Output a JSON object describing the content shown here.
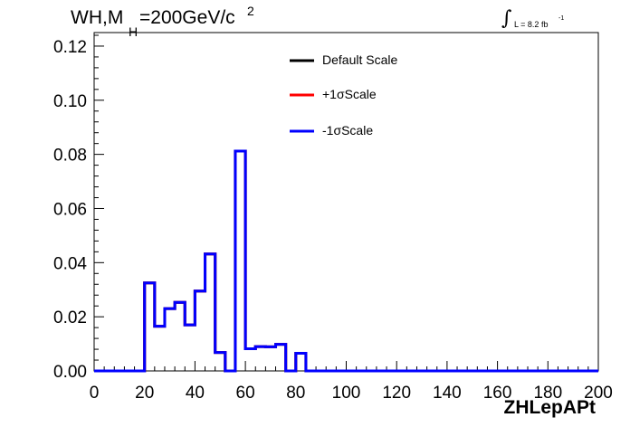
{
  "chart_data": {
    "type": "histogram",
    "title": {
      "prefix": "WH,M",
      "subscript": "H",
      "suffix": "=200GeV/c",
      "superscript": "2"
    },
    "luminosity": {
      "symbol": "∫",
      "text": "L = 8.2 fb",
      "superscript": "-1"
    },
    "xlabel": "ZHLepAPt",
    "xlim": [
      0,
      200
    ],
    "ylim": [
      0,
      0.125
    ],
    "xticks": [
      "0",
      "20",
      "40",
      "60",
      "80",
      "100",
      "120",
      "140",
      "160",
      "180",
      "200"
    ],
    "yticks": [
      "0.00",
      "0.02",
      "0.04",
      "0.06",
      "0.08",
      "0.10",
      "0.12"
    ],
    "bin_width": 4,
    "series": [
      {
        "name": "Default Scale",
        "color": "#000000",
        "values": [
          0,
          0,
          0,
          0,
          0,
          0.0325,
          0.0165,
          0.023,
          0.0253,
          0.017,
          0.0295,
          0.0432,
          0.0068,
          0,
          0.0812,
          0.0082,
          0.009,
          0.0089,
          0.0098,
          0,
          0.0065,
          0,
          0,
          0,
          0,
          0,
          0,
          0,
          0,
          0,
          0,
          0,
          0,
          0,
          0,
          0,
          0,
          0,
          0,
          0,
          0,
          0,
          0,
          0,
          0,
          0,
          0,
          0,
          0,
          0
        ]
      },
      {
        "name": "+1σScale",
        "color": "#ff0000",
        "values": [
          0,
          0,
          0,
          0,
          0,
          0.0325,
          0.0165,
          0.023,
          0.0253,
          0.017,
          0.0295,
          0.0432,
          0.0068,
          0,
          0.0812,
          0.0082,
          0.009,
          0.0089,
          0.0098,
          0,
          0.0065,
          0,
          0,
          0,
          0,
          0,
          0,
          0,
          0,
          0,
          0,
          0,
          0,
          0,
          0,
          0,
          0,
          0,
          0,
          0,
          0,
          0,
          0,
          0,
          0,
          0,
          0,
          0,
          0,
          0
        ]
      },
      {
        "name": "-1σScale",
        "color": "#0000ff",
        "values": [
          0,
          0,
          0,
          0,
          0,
          0.0325,
          0.0165,
          0.023,
          0.0253,
          0.017,
          0.0295,
          0.0432,
          0.0068,
          0,
          0.0812,
          0.0082,
          0.009,
          0.0089,
          0.0098,
          0,
          0.0065,
          0,
          0,
          0,
          0,
          0,
          0,
          0,
          0,
          0,
          0,
          0,
          0,
          0,
          0,
          0,
          0,
          0,
          0,
          0,
          0,
          0,
          0,
          0,
          0,
          0,
          0,
          0,
          0,
          0
        ]
      }
    ],
    "legend_position": "top-center"
  }
}
